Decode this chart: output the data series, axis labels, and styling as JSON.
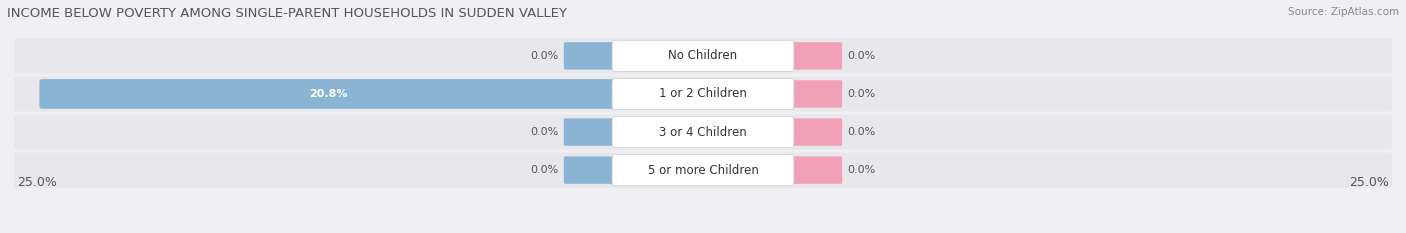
{
  "title": "INCOME BELOW POVERTY AMONG SINGLE-PARENT HOUSEHOLDS IN SUDDEN VALLEY",
  "source": "Source: ZipAtlas.com",
  "categories": [
    "No Children",
    "1 or 2 Children",
    "3 or 4 Children",
    "5 or more Children"
  ],
  "single_father": [
    0.0,
    20.8,
    0.0,
    0.0
  ],
  "single_mother": [
    0.0,
    0.0,
    0.0,
    0.0
  ],
  "x_max": 25.0,
  "father_color": "#8ab4d4",
  "mother_color": "#f2a0b8",
  "row_bg_color": "#e8e8ec",
  "bg_color": "#f0f0f4",
  "label_color_dark": "#555555",
  "title_color": "#555555",
  "title_fontsize": 9.5,
  "tick_fontsize": 9,
  "label_fontsize": 8.0,
  "category_fontsize": 8.5,
  "source_fontsize": 7.5
}
